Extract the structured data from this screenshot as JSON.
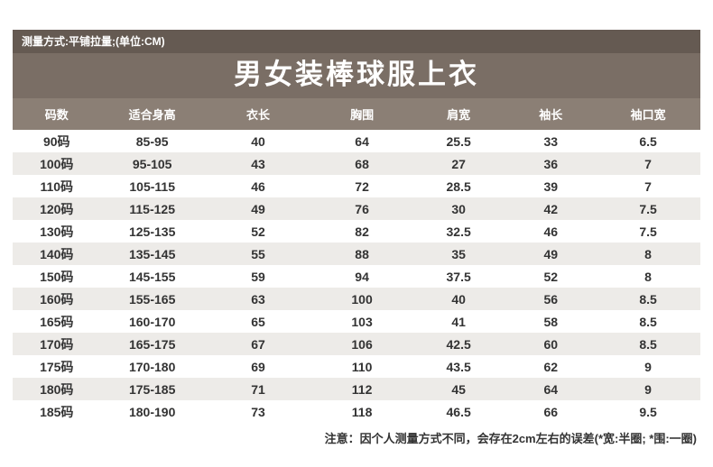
{
  "meta_bar": {
    "text": "测量方式:平铺拉量;(单位:CM)"
  },
  "chart_data": {
    "type": "table",
    "title": "男女装棒球服上衣",
    "columns": [
      "码数",
      "适合身高",
      "衣长",
      "胸围",
      "肩宽",
      "袖长",
      "袖口宽"
    ],
    "rows": [
      [
        "90码",
        "85-95",
        "40",
        "64",
        "25.5",
        "33",
        "6.5"
      ],
      [
        "100码",
        "95-105",
        "43",
        "68",
        "27",
        "36",
        "7"
      ],
      [
        "110码",
        "105-115",
        "46",
        "72",
        "28.5",
        "39",
        "7"
      ],
      [
        "120码",
        "115-125",
        "49",
        "76",
        "30",
        "42",
        "7.5"
      ],
      [
        "130码",
        "125-135",
        "52",
        "82",
        "32.5",
        "46",
        "7.5"
      ],
      [
        "140码",
        "135-145",
        "55",
        "88",
        "35",
        "49",
        "8"
      ],
      [
        "150码",
        "145-155",
        "59",
        "94",
        "37.5",
        "52",
        "8"
      ],
      [
        "160码",
        "155-165",
        "63",
        "100",
        "40",
        "56",
        "8.5"
      ],
      [
        "165码",
        "160-170",
        "65",
        "103",
        "41",
        "58",
        "8.5"
      ],
      [
        "170码",
        "165-175",
        "67",
        "106",
        "42.5",
        "60",
        "8.5"
      ],
      [
        "175码",
        "170-180",
        "69",
        "110",
        "43.5",
        "62",
        "9"
      ],
      [
        "180码",
        "175-185",
        "71",
        "112",
        "45",
        "64",
        "9"
      ],
      [
        "185码",
        "180-190",
        "73",
        "118",
        "46.5",
        "66",
        "9.5"
      ]
    ],
    "units": "CM",
    "layout": "striped table, white/light-gray alternating rows, centered values"
  },
  "footer_note": "注意：因个人测量方式不同，会存在2cm左右的误差(*宽:半圈; *围:一圈)",
  "colors": {
    "topbar": "#655a52",
    "titlebar": "#7a6e65",
    "header": "#8b7f75",
    "stripe": "#edebe8",
    "text": "#333333"
  }
}
